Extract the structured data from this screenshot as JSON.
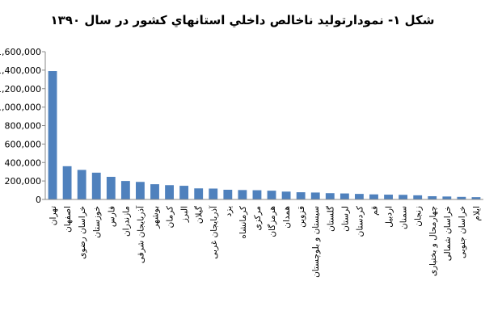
{
  "chart_data": {
    "type": "bar",
    "title": "شکل ۱- نمودارتولید ناخالص داخلي استانهاي كشور در سال ۱۳۹۰",
    "categories": [
      "تهران",
      "اصفهان",
      "خراسان رضوی",
      "خوزستان",
      "فارس",
      "مازندران",
      "آذربایجان شرقی",
      "بوشهر",
      "کرمان",
      "البرز",
      "گیلان",
      "آذربایجان غربی",
      "یزد",
      "کرمانشاه",
      "مرکزی",
      "هرمزگان",
      "همدان",
      "قزوین",
      "سیستان و بلوچستان",
      "گلستان",
      "لرستان",
      "کردستان",
      "قم",
      "اردبیل",
      "سمنان",
      "زنجان",
      "چهارمحال و بختیاری",
      "خراسان شمالی",
      "خراسان جنوبی",
      "ایلام"
    ],
    "values": [
      1390000,
      360000,
      320000,
      290000,
      245000,
      200000,
      190000,
      165000,
      155000,
      148000,
      120000,
      118000,
      105000,
      102000,
      100000,
      95000,
      85000,
      78000,
      75000,
      68000,
      65000,
      60000,
      55000,
      52000,
      50000,
      45000,
      35000,
      32000,
      28000,
      25000
    ],
    "color": "#4f81bd",
    "ylim": [
      0,
      1600000
    ],
    "yticks": [
      0,
      {
        "value": 200000,
        "label": "200,000"
      },
      {
        "value": 400000,
        "label": "400,000"
      },
      {
        "value": 600000,
        "label": "600,000"
      },
      {
        "value": 800000,
        "label": "800,000"
      },
      {
        "value": 1000000,
        "label": "1,000,000"
      },
      {
        "value": 1200000,
        "label": "1,200,000"
      },
      {
        "value": 1400000,
        "label": "1,400,000"
      },
      {
        "value": 1600000,
        "label": "1,600,000"
      }
    ],
    "grid": false
  }
}
